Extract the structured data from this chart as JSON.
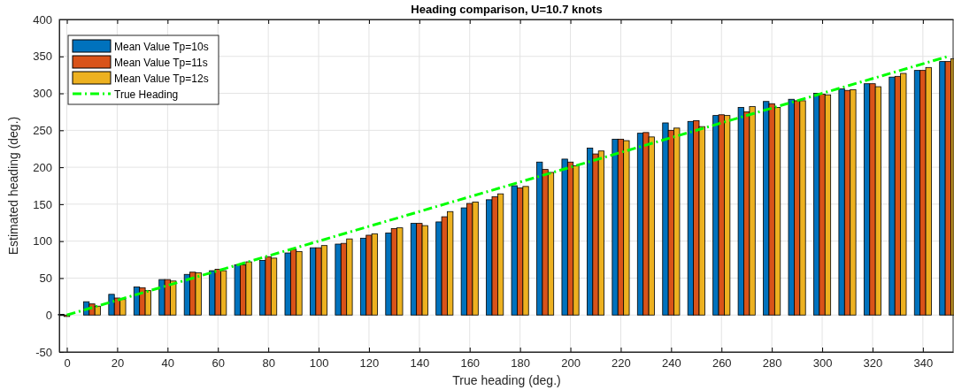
{
  "chart_data": {
    "type": "bar",
    "title": "Heading comparison, U=10.7 knots",
    "xlabel": "True heading (deg.)",
    "ylabel": "Estimated heading (deg.)",
    "x": [
      0,
      10,
      20,
      30,
      40,
      50,
      60,
      70,
      80,
      90,
      100,
      110,
      120,
      130,
      140,
      150,
      160,
      170,
      180,
      190,
      200,
      210,
      220,
      230,
      240,
      250,
      260,
      270,
      280,
      290,
      300,
      310,
      320,
      330,
      340,
      350
    ],
    "series": [
      {
        "name": "Mean Value Tp=10s",
        "color": "#0072bd",
        "values": [
          1,
          18,
          28,
          38,
          48,
          55,
          60,
          68,
          74,
          84,
          91,
          96,
          104,
          111,
          124,
          126,
          145,
          156,
          175,
          207,
          211,
          226,
          238,
          246,
          260,
          262,
          270,
          281,
          289,
          292,
          300,
          306,
          313,
          322,
          331,
          343
        ]
      },
      {
        "name": "Mean Value Tp=11s",
        "color": "#d95319",
        "values": [
          -2,
          15,
          23,
          37,
          48,
          58,
          62,
          68,
          79,
          89,
          91,
          97,
          108,
          117,
          124,
          133,
          151,
          160,
          172,
          197,
          207,
          218,
          238,
          247,
          250,
          263,
          271,
          275,
          286,
          290,
          299,
          304,
          313,
          323,
          331,
          343
        ]
      },
      {
        "name": "Mean Value Tp=12s",
        "color": "#edb120",
        "values": [
          0,
          12,
          21,
          33,
          46,
          57,
          60,
          72,
          77,
          86,
          94,
          103,
          110,
          118,
          121,
          140,
          153,
          164,
          174,
          193,
          202,
          222,
          236,
          241,
          253,
          255,
          270,
          282,
          281,
          290,
          298,
          305,
          309,
          327,
          335,
          347
        ]
      },
      {
        "name": "True Heading",
        "type": "line",
        "color": "#00ff00",
        "line_style": "dashed",
        "x": [
          0,
          350
        ],
        "values": [
          0,
          350
        ]
      }
    ],
    "xlim": [
      -3,
      352
    ],
    "xticks": [
      0,
      20,
      40,
      60,
      80,
      100,
      120,
      140,
      160,
      180,
      200,
      220,
      240,
      260,
      280,
      300,
      320,
      340
    ],
    "ylim": [
      -50,
      400
    ],
    "yticks": [
      -50,
      0,
      50,
      100,
      150,
      200,
      250,
      300,
      350,
      400
    ],
    "grid": true,
    "legend": "top left"
  }
}
